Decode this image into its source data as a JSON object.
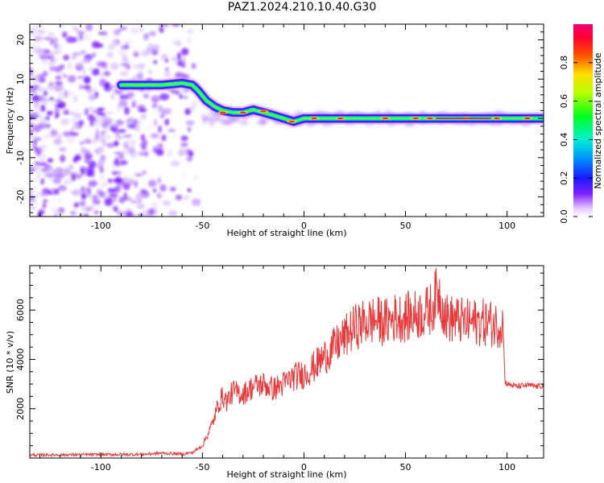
{
  "title": "PAZ1.2024.210.10.40.G30",
  "chart_data": [
    {
      "type": "heatmap",
      "xlabel": "Height of straight line (km)",
      "ylabel": "Frequency (Hz)",
      "xlim": [
        -135,
        118
      ],
      "ylim": [
        -25,
        24
      ],
      "xticks": [
        -100,
        -50,
        0,
        50,
        100
      ],
      "yticks": [
        -20,
        -10,
        0,
        10,
        20
      ],
      "colorbar": {
        "label": "Normalized spectral amplitude",
        "range": [
          0,
          1
        ],
        "ticks": [
          "0.0",
          "0.2",
          "0.4",
          "0.6",
          "0.8"
        ]
      },
      "ridge": {
        "description_points_x": [
          -90,
          -80,
          -70,
          -60,
          -55,
          -52,
          -48,
          -44,
          -40,
          -35,
          -30,
          -25,
          -20,
          -15,
          -10,
          -5,
          0,
          10,
          30,
          60,
          100,
          118
        ],
        "frequency_hz": [
          8.5,
          8.5,
          8.5,
          9,
          8.5,
          7,
          4.5,
          3,
          2,
          1.5,
          1.5,
          2.2,
          1.5,
          0.8,
          0,
          -0.8,
          0,
          0,
          0,
          0,
          0,
          0
        ]
      }
    },
    {
      "type": "line",
      "xlabel": "Height of straight line (km)",
      "ylabel": "SNR (10 * v/v)",
      "xlim": [
        -135,
        118
      ],
      "ylim": [
        0,
        7800
      ],
      "xticks": [
        -100,
        -50,
        0,
        50,
        100
      ],
      "yticks": [
        2000,
        4000,
        6000
      ],
      "series": [
        {
          "color": "#e8383a",
          "x": [
            -135,
            -120,
            -100,
            -80,
            -70,
            -60,
            -55,
            -50,
            -45,
            -42,
            -40,
            -38,
            -35,
            -30,
            -25,
            -20,
            -15,
            -10,
            -5,
            0,
            5,
            10,
            15,
            20,
            25,
            30,
            35,
            40,
            45,
            50,
            55,
            60,
            63,
            66,
            70,
            75,
            80,
            85,
            90,
            95,
            98,
            99,
            100,
            105,
            110,
            115,
            118
          ],
          "y": [
            120,
            130,
            140,
            150,
            200,
            160,
            220,
            500,
            1400,
            2200,
            2500,
            2300,
            2700,
            2600,
            2900,
            3000,
            2800,
            3000,
            3300,
            3400,
            3700,
            4100,
            4500,
            4900,
            5300,
            5500,
            5600,
            5500,
            5700,
            5700,
            5800,
            5900,
            6100,
            6800,
            5700,
            5600,
            5500,
            5500,
            5500,
            5400,
            5500,
            3100,
            3000,
            2900,
            2950,
            2900,
            2950
          ]
        }
      ]
    }
  ]
}
